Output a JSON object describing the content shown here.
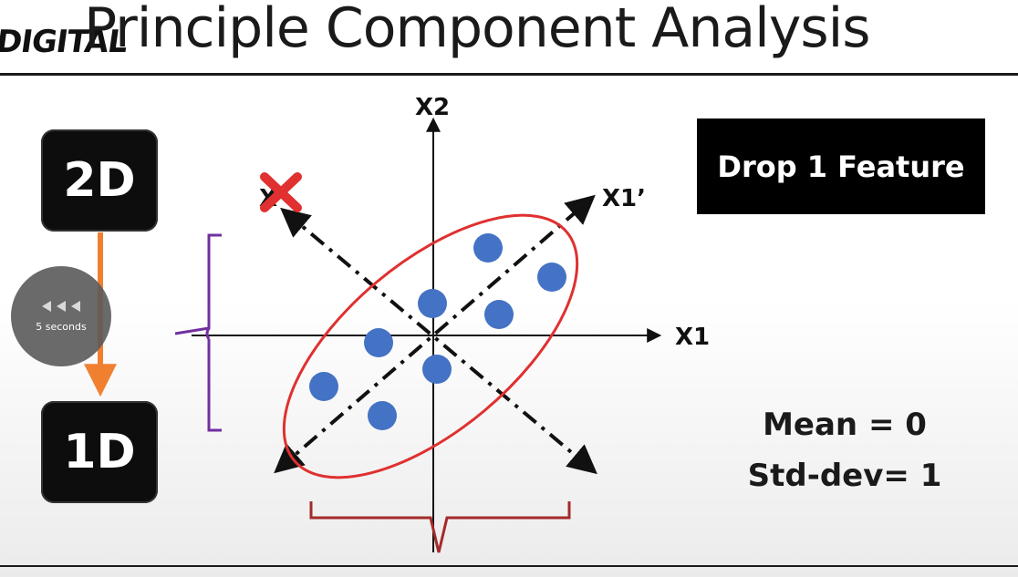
{
  "slide": {
    "logo_text": "DIGITAL",
    "title": "Principle Component Analysis"
  },
  "left_panel": {
    "box_top": "2D",
    "box_bottom": "1D"
  },
  "diagram": {
    "axis_x": "X1",
    "axis_y": "X2",
    "axis_principal": "X1’",
    "axis_secondary_partial": "X",
    "point_color": "#4472c4",
    "ellipse_color": "#e03030",
    "cross_color": "#e03030",
    "bracket_left_color": "#7030a0",
    "bracket_bottom_color": "#a52a2a",
    "arrow_color": "#f08030"
  },
  "right_panel": {
    "drop_label": "Drop 1 Feature",
    "mean_label": "Mean = 0",
    "std_label": "Std-dev= 1"
  },
  "player": {
    "seek_label": "5 seconds",
    "seek_icon": "rewind-icon"
  }
}
